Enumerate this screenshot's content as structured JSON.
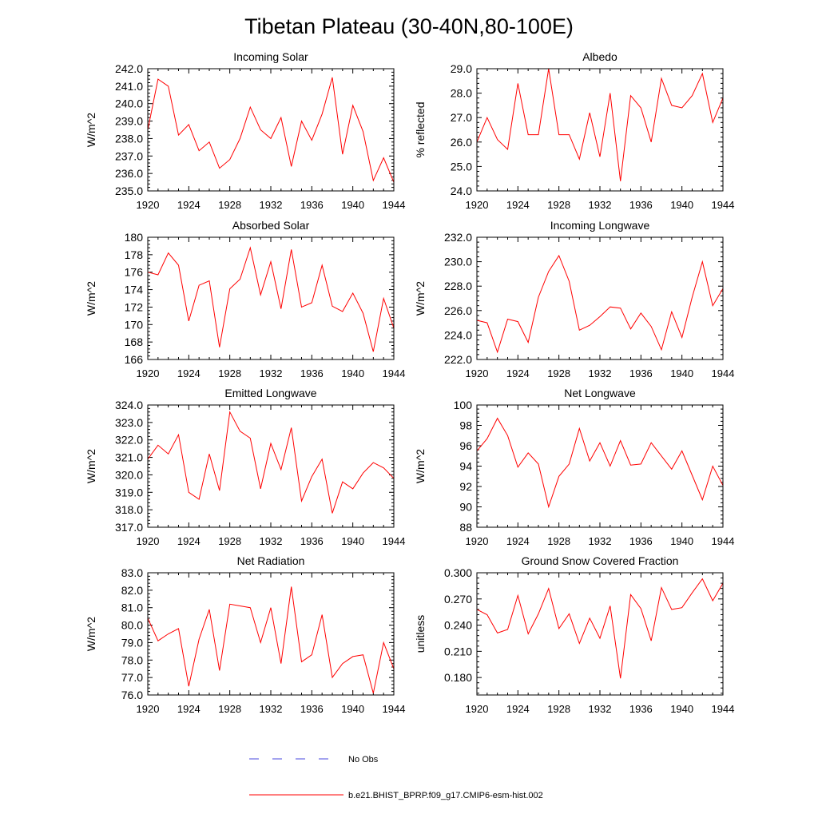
{
  "figure": {
    "title": "Tibetan Plateau (30-40N,80-100E)",
    "legend": [
      {
        "label": "No Obs",
        "style": "dashed",
        "color": "#4a4adf"
      },
      {
        "label": "b.e21.BHIST_BPRP.f09_g17.CMIP6-esm-hist.002",
        "style": "solid",
        "color": "#ff0000"
      }
    ]
  },
  "chart_data": [
    {
      "type": "line",
      "title": "Incoming Solar",
      "xlabel": "",
      "ylabel": "W/m^2",
      "xlim": [
        1920,
        1944
      ],
      "ylim": [
        235,
        242
      ],
      "xticks": [
        1920,
        1924,
        1928,
        1932,
        1936,
        1940,
        1944
      ],
      "xticklabels": [
        "1920",
        "1924",
        "1928",
        "1932",
        "1936",
        "1940",
        "1944"
      ],
      "yticks": [
        235,
        236,
        237,
        238,
        239,
        240,
        241,
        242
      ],
      "yticklabels": [
        "235.0",
        "236.0",
        "237.0",
        "238.0",
        "239.0",
        "240.0",
        "241.0",
        "242.0"
      ],
      "x": [
        1920,
        1921,
        1922,
        1923,
        1924,
        1925,
        1926,
        1927,
        1928,
        1929,
        1930,
        1931,
        1932,
        1933,
        1934,
        1935,
        1936,
        1937,
        1938,
        1939,
        1940,
        1941,
        1942,
        1943,
        1944
      ],
      "series": [
        {
          "name": "b.e21.BHIST_BPRP.f09_g17.CMIP6-esm-hist.002",
          "color": "#ff0000",
          "values": [
            238.5,
            241.4,
            241.0,
            238.2,
            238.8,
            237.3,
            237.8,
            236.3,
            236.8,
            238.0,
            239.8,
            238.5,
            238.0,
            239.2,
            236.4,
            239.0,
            237.9,
            239.4,
            241.5,
            237.1,
            239.9,
            238.4,
            235.6,
            236.9,
            235.5
          ]
        }
      ]
    },
    {
      "type": "line",
      "title": "Albedo",
      "xlabel": "",
      "ylabel": "% reflected",
      "xlim": [
        1920,
        1944
      ],
      "ylim": [
        24,
        29
      ],
      "xticks": [
        1920,
        1924,
        1928,
        1932,
        1936,
        1940,
        1944
      ],
      "xticklabels": [
        "1920",
        "1924",
        "1928",
        "1932",
        "1936",
        "1940",
        "1944"
      ],
      "yticks": [
        24,
        25,
        26,
        27,
        28,
        29
      ],
      "yticklabels": [
        "24.0",
        "25.0",
        "26.0",
        "27.0",
        "28.0",
        "29.0"
      ],
      "x": [
        1920,
        1921,
        1922,
        1923,
        1924,
        1925,
        1926,
        1927,
        1928,
        1929,
        1930,
        1931,
        1932,
        1933,
        1934,
        1935,
        1936,
        1937,
        1938,
        1939,
        1940,
        1941,
        1942,
        1943,
        1944
      ],
      "series": [
        {
          "name": "b.e21.BHIST_BPRP.f09_g17.CMIP6-esm-hist.002",
          "color": "#ff0000",
          "values": [
            26.0,
            27.0,
            26.1,
            25.7,
            28.4,
            26.3,
            26.3,
            29.0,
            26.3,
            26.3,
            25.3,
            27.2,
            25.4,
            28.0,
            24.4,
            27.9,
            27.4,
            26.0,
            28.6,
            27.5,
            27.4,
            27.9,
            28.8,
            26.8,
            27.8
          ]
        }
      ]
    },
    {
      "type": "line",
      "title": "Absorbed Solar",
      "xlabel": "",
      "ylabel": "W/m^2",
      "xlim": [
        1920,
        1944
      ],
      "ylim": [
        166,
        180
      ],
      "xticks": [
        1920,
        1924,
        1928,
        1932,
        1936,
        1940,
        1944
      ],
      "xticklabels": [
        "1920",
        "1924",
        "1928",
        "1932",
        "1936",
        "1940",
        "1944"
      ],
      "yticks": [
        166,
        168,
        170,
        172,
        174,
        176,
        178,
        180
      ],
      "yticklabels": [
        "166",
        "168",
        "170",
        "172",
        "174",
        "176",
        "178",
        "180"
      ],
      "x": [
        1920,
        1921,
        1922,
        1923,
        1924,
        1925,
        1926,
        1927,
        1928,
        1929,
        1930,
        1931,
        1932,
        1933,
        1934,
        1935,
        1936,
        1937,
        1938,
        1939,
        1940,
        1941,
        1942,
        1943,
        1944
      ],
      "series": [
        {
          "name": "b.e21.BHIST_BPRP.f09_g17.CMIP6-esm-hist.002",
          "color": "#ff0000",
          "values": [
            176.0,
            175.7,
            178.2,
            176.8,
            170.4,
            174.5,
            175.0,
            167.4,
            174.1,
            175.2,
            178.8,
            173.4,
            177.2,
            171.8,
            178.6,
            172.0,
            172.5,
            176.8,
            172.1,
            171.5,
            173.6,
            171.3,
            166.9,
            173.0,
            169.6
          ]
        }
      ]
    },
    {
      "type": "line",
      "title": "Incoming Longwave",
      "xlabel": "",
      "ylabel": "W/m^2",
      "xlim": [
        1920,
        1944
      ],
      "ylim": [
        222,
        232
      ],
      "xticks": [
        1920,
        1924,
        1928,
        1932,
        1936,
        1940,
        1944
      ],
      "xticklabels": [
        "1920",
        "1924",
        "1928",
        "1932",
        "1936",
        "1940",
        "1944"
      ],
      "yticks": [
        222,
        224,
        226,
        228,
        230,
        232
      ],
      "yticklabels": [
        "222.0",
        "224.0",
        "226.0",
        "228.0",
        "230.0",
        "232.0"
      ],
      "x": [
        1920,
        1921,
        1922,
        1923,
        1924,
        1925,
        1926,
        1927,
        1928,
        1929,
        1930,
        1931,
        1932,
        1933,
        1934,
        1935,
        1936,
        1937,
        1938,
        1939,
        1940,
        1941,
        1942,
        1943,
        1944
      ],
      "series": [
        {
          "name": "b.e21.BHIST_BPRP.f09_g17.CMIP6-esm-hist.002",
          "color": "#ff0000",
          "values": [
            225.2,
            225.0,
            222.6,
            225.3,
            225.1,
            223.4,
            227.1,
            229.2,
            230.5,
            228.4,
            224.4,
            224.8,
            225.5,
            226.3,
            226.2,
            224.5,
            225.8,
            224.7,
            222.8,
            225.9,
            223.8,
            227.1,
            230.0,
            226.4,
            227.8
          ]
        }
      ]
    },
    {
      "type": "line",
      "title": "Emitted Longwave",
      "xlabel": "",
      "ylabel": "W/m^2",
      "xlim": [
        1920,
        1944
      ],
      "ylim": [
        317,
        324
      ],
      "xticks": [
        1920,
        1924,
        1928,
        1932,
        1936,
        1940,
        1944
      ],
      "xticklabels": [
        "1920",
        "1924",
        "1928",
        "1932",
        "1936",
        "1940",
        "1944"
      ],
      "yticks": [
        317,
        318,
        319,
        320,
        321,
        322,
        323,
        324
      ],
      "yticklabels": [
        "317.0",
        "318.0",
        "319.0",
        "320.0",
        "321.0",
        "322.0",
        "323.0",
        "324.0"
      ],
      "x": [
        1920,
        1921,
        1922,
        1923,
        1924,
        1925,
        1926,
        1927,
        1928,
        1929,
        1930,
        1931,
        1932,
        1933,
        1934,
        1935,
        1936,
        1937,
        1938,
        1939,
        1940,
        1941,
        1942,
        1943,
        1944
      ],
      "series": [
        {
          "name": "b.e21.BHIST_BPRP.f09_g17.CMIP6-esm-hist.002",
          "color": "#ff0000",
          "values": [
            320.9,
            321.7,
            321.2,
            322.3,
            319.0,
            318.6,
            321.2,
            319.1,
            323.6,
            322.5,
            322.1,
            319.2,
            321.8,
            320.3,
            322.7,
            318.5,
            319.9,
            320.9,
            317.8,
            319.6,
            319.2,
            320.1,
            320.7,
            320.4,
            319.8
          ]
        }
      ]
    },
    {
      "type": "line",
      "title": "Net Longwave",
      "xlabel": "",
      "ylabel": "W/m^2",
      "xlim": [
        1920,
        1944
      ],
      "ylim": [
        88,
        100
      ],
      "xticks": [
        1920,
        1924,
        1928,
        1932,
        1936,
        1940,
        1944
      ],
      "xticklabels": [
        "1920",
        "1924",
        "1928",
        "1932",
        "1936",
        "1940",
        "1944"
      ],
      "yticks": [
        88,
        90,
        92,
        94,
        96,
        98,
        100
      ],
      "yticklabels": [
        "88",
        "90",
        "92",
        "94",
        "96",
        "98",
        "100"
      ],
      "x": [
        1920,
        1921,
        1922,
        1923,
        1924,
        1925,
        1926,
        1927,
        1928,
        1929,
        1930,
        1931,
        1932,
        1933,
        1934,
        1935,
        1936,
        1937,
        1938,
        1939,
        1940,
        1941,
        1942,
        1943,
        1944
      ],
      "series": [
        {
          "name": "b.e21.BHIST_BPRP.f09_g17.CMIP6-esm-hist.002",
          "color": "#ff0000",
          "values": [
            95.5,
            96.7,
            98.7,
            97.0,
            93.9,
            95.3,
            94.2,
            90.0,
            93.0,
            94.2,
            97.7,
            94.5,
            96.3,
            94.0,
            96.5,
            94.1,
            94.2,
            96.3,
            95.0,
            93.7,
            95.5,
            93.1,
            90.7,
            94.0,
            92.1
          ]
        }
      ]
    },
    {
      "type": "line",
      "title": "Net Radiation",
      "xlabel": "",
      "ylabel": "W/m^2",
      "xlim": [
        1920,
        1944
      ],
      "ylim": [
        76,
        83
      ],
      "xticks": [
        1920,
        1924,
        1928,
        1932,
        1936,
        1940,
        1944
      ],
      "xticklabels": [
        "1920",
        "1924",
        "1928",
        "1932",
        "1936",
        "1940",
        "1944"
      ],
      "yticks": [
        76,
        77,
        78,
        79,
        80,
        81,
        82,
        83
      ],
      "yticklabels": [
        "76.0",
        "77.0",
        "78.0",
        "79.0",
        "80.0",
        "81.0",
        "82.0",
        "83.0"
      ],
      "x": [
        1920,
        1921,
        1922,
        1923,
        1924,
        1925,
        1926,
        1927,
        1928,
        1929,
        1930,
        1931,
        1932,
        1933,
        1934,
        1935,
        1936,
        1937,
        1938,
        1939,
        1940,
        1941,
        1942,
        1943,
        1944
      ],
      "series": [
        {
          "name": "b.e21.BHIST_BPRP.f09_g17.CMIP6-esm-hist.002",
          "color": "#ff0000",
          "values": [
            80.4,
            79.1,
            79.5,
            79.8,
            76.5,
            79.2,
            80.9,
            77.4,
            81.2,
            81.1,
            81.0,
            79.0,
            81.0,
            77.8,
            82.2,
            77.9,
            78.3,
            80.6,
            77.0,
            77.8,
            78.2,
            78.3,
            76.1,
            79.0,
            77.5
          ]
        }
      ]
    },
    {
      "type": "line",
      "title": "Ground Snow Covered Fraction",
      "xlabel": "",
      "ylabel": "unitless",
      "xlim": [
        1920,
        1944
      ],
      "ylim": [
        0.16,
        0.3
      ],
      "xticks": [
        1920,
        1924,
        1928,
        1932,
        1936,
        1940,
        1944
      ],
      "xticklabels": [
        "1920",
        "1924",
        "1928",
        "1932",
        "1936",
        "1940",
        "1944"
      ],
      "yticks": [
        0.18,
        0.21,
        0.24,
        0.27,
        0.3
      ],
      "yticklabels": [
        "0.180",
        "0.210",
        "0.240",
        "0.270",
        "0.300"
      ],
      "x": [
        1920,
        1921,
        1922,
        1923,
        1924,
        1925,
        1926,
        1927,
        1928,
        1929,
        1930,
        1931,
        1932,
        1933,
        1934,
        1935,
        1936,
        1937,
        1938,
        1939,
        1940,
        1941,
        1942,
        1943,
        1944
      ],
      "series": [
        {
          "name": "b.e21.BHIST_BPRP.f09_g17.CMIP6-esm-hist.002",
          "color": "#ff0000",
          "values": [
            0.258,
            0.252,
            0.231,
            0.235,
            0.274,
            0.23,
            0.253,
            0.282,
            0.236,
            0.253,
            0.219,
            0.248,
            0.225,
            0.262,
            0.179,
            0.275,
            0.259,
            0.222,
            0.283,
            0.258,
            0.26,
            0.277,
            0.293,
            0.268,
            0.288
          ]
        }
      ]
    }
  ]
}
